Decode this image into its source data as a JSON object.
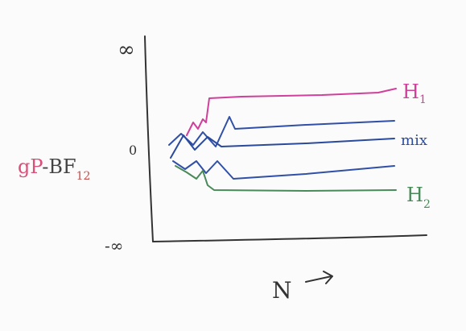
{
  "axes": {
    "y_top": "∞",
    "y_zero": "0",
    "y_bottom": "-∞",
    "y_label": {
      "prefix": "gP",
      "main": "-BF",
      "subscript": "12"
    },
    "x_label": "N"
  },
  "curves": [
    {
      "label": "H",
      "subscript": "1"
    },
    {
      "label": "mix"
    },
    {
      "label": "H",
      "subscript": "2"
    }
  ]
}
